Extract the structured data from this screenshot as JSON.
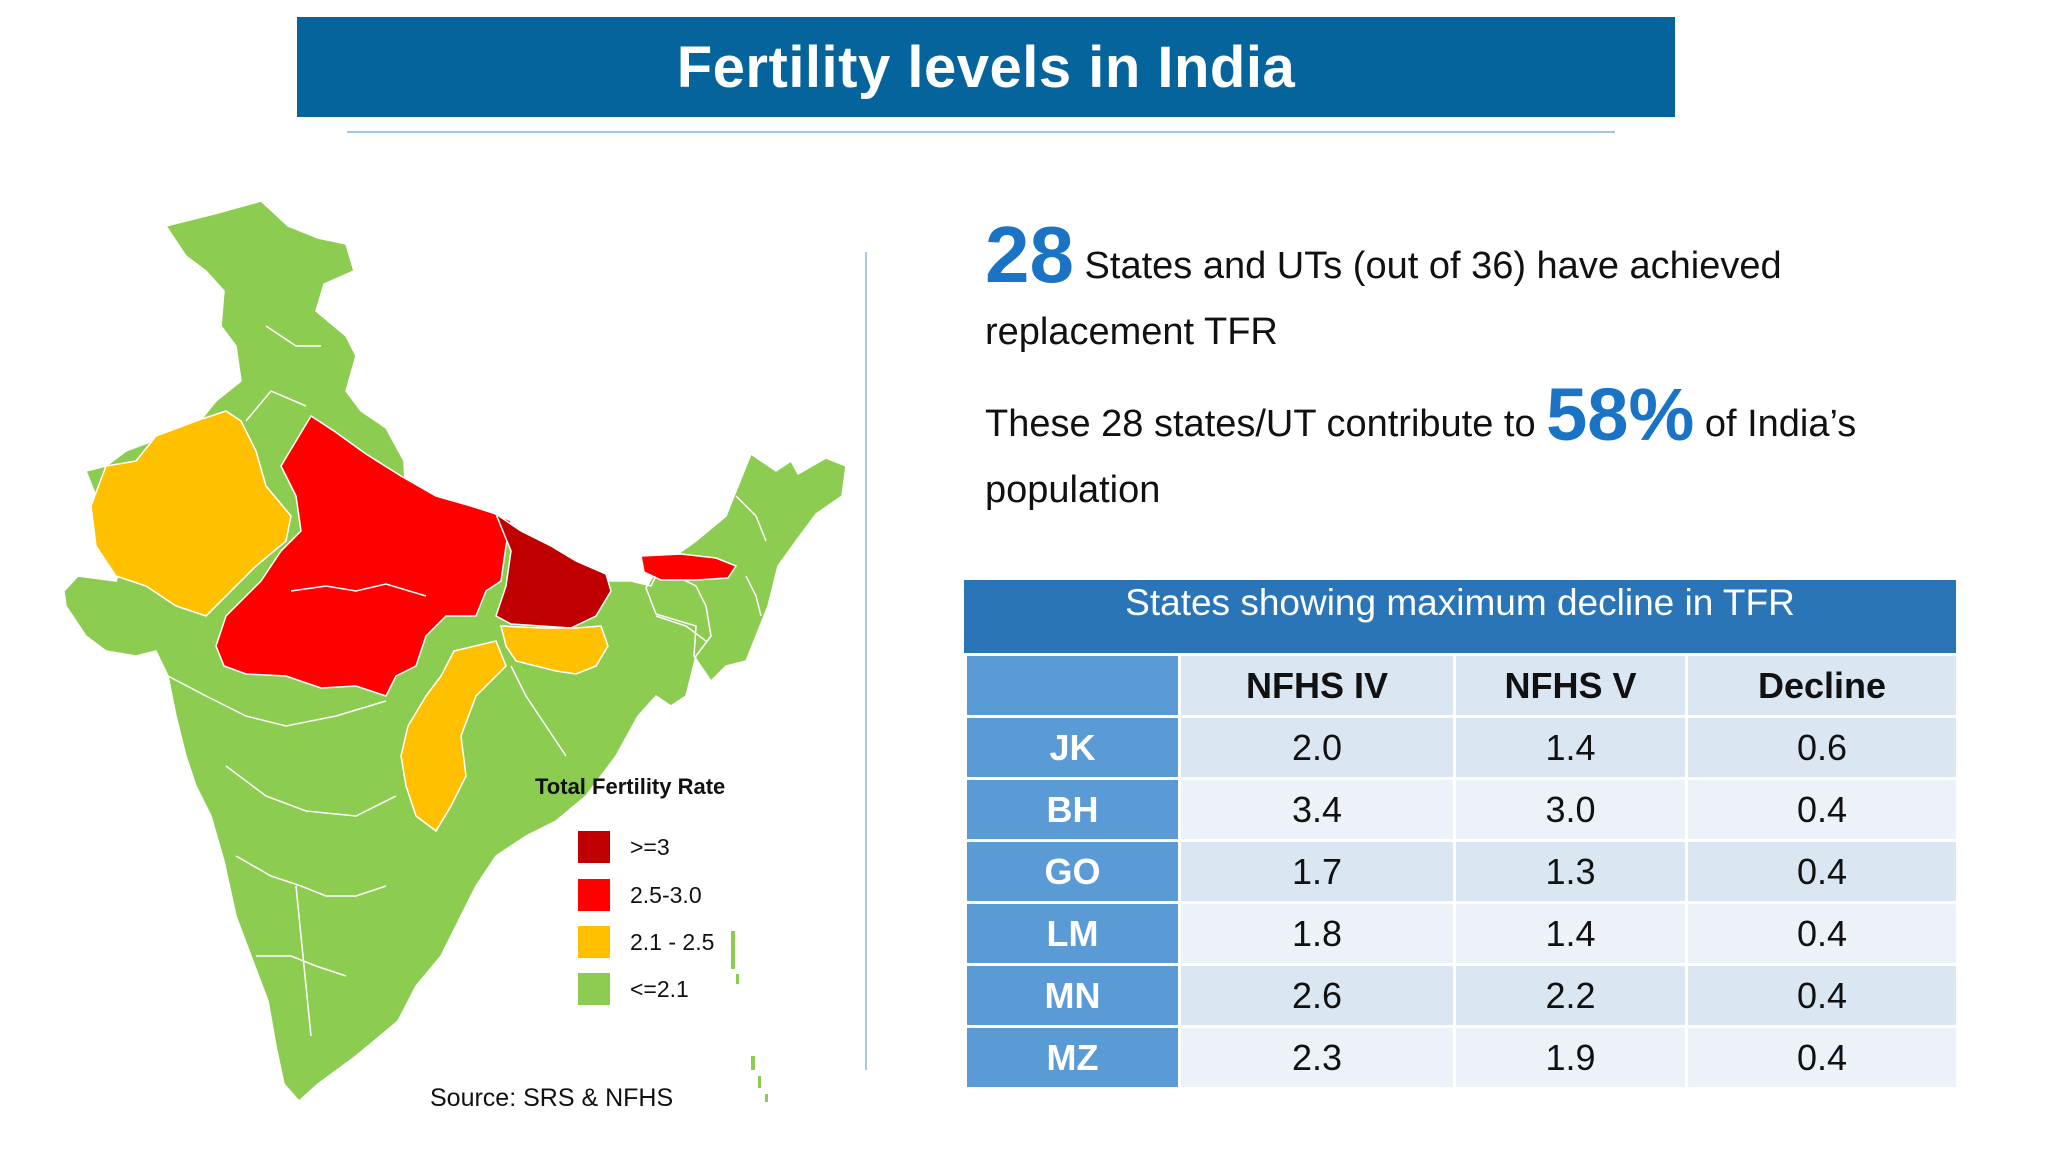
{
  "title": "Fertility levels in India",
  "stat1": {
    "number": "28",
    "text": " States and UTs (out of 36) have achieved replacement TFR"
  },
  "stat2": {
    "text_before": "These 28 states/UT contribute to ",
    "number": "58%",
    "text_after": " of India’s population"
  },
  "map": {
    "legend_title": "Total Fertility Rate",
    "legend": [
      {
        "label": ">=3",
        "color": "#c00000"
      },
      {
        "label": "2.5-3.0",
        "color": "#ff0000"
      },
      {
        "label": "2.1 - 2.5",
        "color": "#ffc000"
      },
      {
        "label": "<=2.1",
        "color": "#8ccc50"
      }
    ]
  },
  "source": "Source: SRS & NFHS",
  "table": {
    "title": "States showing maximum decline in TFR",
    "headers": [
      "",
      "NFHS IV",
      "NFHS V",
      "Decline"
    ],
    "rows": [
      [
        "JK",
        "2.0",
        "1.4",
        "0.6"
      ],
      [
        "BH",
        "3.4",
        "3.0",
        "0.4"
      ],
      [
        "GO",
        "1.7",
        "1.3",
        "0.4"
      ],
      [
        "LM",
        "1.8",
        "1.4",
        "0.4"
      ],
      [
        "MN",
        "2.6",
        "2.2",
        "0.4"
      ],
      [
        "MZ",
        "2.3",
        "1.9",
        "0.4"
      ]
    ]
  }
}
